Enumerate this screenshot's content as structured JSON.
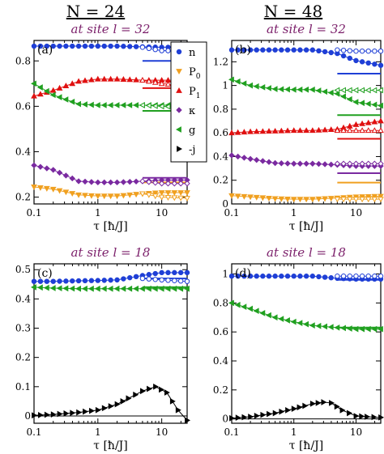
{
  "chart_data": [
    {
      "type": "scatter",
      "panel": "(a)",
      "column_title": "N = 24",
      "subtitle": "at site l = 32",
      "xlabel": "τ [ħ/J]",
      "xscale": "log",
      "xlim": [
        0.1,
        25
      ],
      "ylim": [
        0.17,
        0.89
      ],
      "xticks": [
        "0.1",
        "1",
        "10"
      ],
      "yticks": [
        0.2,
        0.4,
        0.6,
        0.8
      ],
      "ytick_labels": [
        "0.2",
        "0.4",
        "0.6",
        "0.8"
      ],
      "legend": {
        "placement": "top-right",
        "entries": [
          {
            "label": "n",
            "sub": "",
            "marker": "circle",
            "color": "#1f3fd6"
          },
          {
            "label": "P",
            "sub": "0",
            "marker": "tri-down",
            "color": "#f0a020"
          },
          {
            "label": "P",
            "sub": "1",
            "marker": "tri-up",
            "color": "#e01010"
          },
          {
            "label": "κ",
            "sub": "",
            "marker": "diamond",
            "color": "#7a2aa0"
          },
          {
            "label": "g",
            "sub": "",
            "marker": "tri-left",
            "color": "#20a020"
          },
          {
            "label": "-j",
            "sub": "",
            "marker": "tri-right",
            "color": "#000000"
          }
        ]
      },
      "series": [
        {
          "name": "n",
          "color": "#1f3fd6",
          "marker": "circle",
          "x": [
            0.1,
            0.2,
            0.5,
            1,
            2,
            5,
            10,
            25
          ],
          "y": [
            0.865,
            0.865,
            0.865,
            0.865,
            0.865,
            0.862,
            0.86,
            0.86
          ],
          "branch_x": [
            5,
            10,
            25
          ],
          "branch_y": [
            0.86,
            0.845,
            0.845
          ],
          "ref": {
            "x": [
              5,
              25
            ],
            "y": 0.8
          }
        },
        {
          "name": "P0",
          "color": "#f0a020",
          "marker": "tri-down",
          "x": [
            0.1,
            0.2,
            0.5,
            1,
            2,
            5,
            10,
            25
          ],
          "y": [
            0.245,
            0.235,
            0.21,
            0.205,
            0.205,
            0.215,
            0.22,
            0.22
          ],
          "branch_x": [
            5,
            10,
            25
          ],
          "branch_y": [
            0.215,
            0.2,
            0.195
          ],
          "ref": {
            "x": [
              5,
              25
            ],
            "y": 0.265
          }
        },
        {
          "name": "P1",
          "color": "#e01010",
          "marker": "tri-up",
          "x": [
            0.1,
            0.2,
            0.5,
            1,
            2,
            5,
            10,
            25
          ],
          "y": [
            0.645,
            0.67,
            0.71,
            0.72,
            0.72,
            0.715,
            0.715,
            0.715
          ],
          "branch_x": [
            5,
            10,
            25
          ],
          "branch_y": [
            0.715,
            0.7,
            0.69
          ],
          "ref": {
            "x": [
              5,
              25
            ],
            "y": 0.68
          }
        },
        {
          "name": "κ",
          "color": "#7a2aa0",
          "marker": "diamond",
          "x": [
            0.1,
            0.2,
            0.5,
            1,
            2,
            5,
            10,
            25
          ],
          "y": [
            0.34,
            0.32,
            0.27,
            0.265,
            0.265,
            0.27,
            0.275,
            0.275
          ],
          "branch_x": [
            5,
            10,
            25
          ],
          "branch_y": [
            0.27,
            0.26,
            0.26
          ],
          "ref": {
            "x": [
              5,
              25
            ],
            "y": 0.285
          }
        },
        {
          "name": "g",
          "color": "#20a020",
          "marker": "tri-left",
          "x": [
            0.1,
            0.2,
            0.5,
            1,
            2,
            5,
            10,
            25
          ],
          "y": [
            0.7,
            0.65,
            0.61,
            0.605,
            0.605,
            0.605,
            0.605,
            0.605
          ],
          "branch_x": [
            5,
            10,
            25
          ],
          "branch_y": [
            0.605,
            0.6,
            0.595
          ],
          "ref": {
            "x": [
              5,
              25
            ],
            "y": 0.58
          }
        }
      ]
    },
    {
      "type": "scatter",
      "panel": "(b)",
      "column_title": "N = 48",
      "subtitle": "at site l = 32",
      "xlabel": "τ [ħ/J]",
      "xscale": "log",
      "xlim": [
        0.1,
        25
      ],
      "ylim": [
        0,
        1.38
      ],
      "xticks": [
        "0.1",
        "1",
        "10"
      ],
      "yticks": [
        0,
        0.2,
        0.4,
        0.6,
        0.8,
        1,
        1.2
      ],
      "ytick_labels": [
        "0",
        "0.2",
        "0.4",
        "0.6",
        "0.8",
        "1",
        "1.2"
      ],
      "series": [
        {
          "name": "n",
          "color": "#1f3fd6",
          "marker": "circle",
          "x": [
            0.1,
            0.2,
            0.5,
            1,
            2,
            5,
            10,
            25
          ],
          "y": [
            1.3,
            1.3,
            1.3,
            1.3,
            1.3,
            1.27,
            1.21,
            1.17
          ],
          "branch_x": [
            5,
            10,
            25
          ],
          "branch_y": [
            1.3,
            1.29,
            1.29
          ],
          "ref": {
            "x": [
              5,
              25
            ],
            "y": 1.1
          }
        },
        {
          "name": "g",
          "color": "#20a020",
          "marker": "tri-left",
          "x": [
            0.1,
            0.2,
            0.5,
            1,
            2,
            5,
            10,
            25
          ],
          "y": [
            1.05,
            1.0,
            0.97,
            0.965,
            0.965,
            0.93,
            0.86,
            0.83
          ],
          "branch_x": [
            5,
            10,
            25
          ],
          "branch_y": [
            0.96,
            0.96,
            0.96
          ],
          "ref": {
            "x": [
              5,
              25
            ],
            "y": 0.75
          }
        },
        {
          "name": "P1",
          "color": "#e01010",
          "marker": "tri-up",
          "x": [
            0.1,
            0.2,
            0.5,
            1,
            2,
            5,
            10,
            25
          ],
          "y": [
            0.6,
            0.61,
            0.615,
            0.62,
            0.62,
            0.63,
            0.67,
            0.7
          ],
          "branch_x": [
            5,
            10,
            25
          ],
          "branch_y": [
            0.62,
            0.62,
            0.62
          ],
          "ref": {
            "x": [
              5,
              25
            ],
            "y": 0.55
          }
        },
        {
          "name": "κ",
          "color": "#7a2aa0",
          "marker": "diamond",
          "x": [
            0.1,
            0.2,
            0.5,
            1,
            2,
            5,
            10,
            25
          ],
          "y": [
            0.41,
            0.38,
            0.345,
            0.34,
            0.34,
            0.33,
            0.32,
            0.32
          ],
          "branch_x": [
            5,
            10,
            25
          ],
          "branch_y": [
            0.34,
            0.34,
            0.34
          ],
          "ref": {
            "x": [
              5,
              25
            ],
            "y": 0.26
          }
        },
        {
          "name": "P0",
          "color": "#f0a020",
          "marker": "tri-down",
          "x": [
            0.1,
            0.2,
            0.5,
            1,
            2,
            5,
            10,
            25
          ],
          "y": [
            0.07,
            0.06,
            0.045,
            0.04,
            0.04,
            0.05,
            0.06,
            0.065
          ],
          "branch_x": [
            5,
            10,
            25
          ],
          "branch_y": [
            0.04,
            0.04,
            0.04
          ],
          "ref": {
            "x": [
              5,
              25
            ],
            "y": 0.18
          }
        }
      ]
    },
    {
      "type": "scatter",
      "panel": "(c)",
      "subtitle": "at site l = 18",
      "xlabel": "τ [ħ/J]",
      "xscale": "log",
      "xlim": [
        0.1,
        25
      ],
      "ylim": [
        -0.025,
        0.52
      ],
      "xticks": [
        "0.1",
        "1",
        "10"
      ],
      "yticks": [
        0,
        0.1,
        0.2,
        0.3,
        0.4,
        0.5
      ],
      "ytick_labels": [
        "0",
        "0.1",
        "0.2",
        "0.3",
        "0.4",
        "0.5"
      ],
      "series": [
        {
          "name": "n",
          "color": "#1f3fd6",
          "marker": "circle",
          "x": [
            0.1,
            0.2,
            0.5,
            1,
            2,
            5,
            10,
            25
          ],
          "y": [
            0.46,
            0.46,
            0.462,
            0.463,
            0.465,
            0.48,
            0.49,
            0.49
          ],
          "branch_x": [
            5,
            10,
            25
          ],
          "branch_y": [
            0.47,
            0.465,
            0.46
          ],
          "ref": {
            "x": [
              5,
              25
            ],
            "y": 0.47
          }
        },
        {
          "name": "g",
          "color": "#20a020",
          "marker": "tri-left",
          "x": [
            0.1,
            0.2,
            0.5,
            1,
            2,
            5,
            10,
            25
          ],
          "y": [
            0.44,
            0.437,
            0.435,
            0.435,
            0.435,
            0.435,
            0.435,
            0.435
          ],
          "branch_x": [],
          "branch_y": [],
          "ref": {
            "x": [
              5,
              25
            ],
            "y": 0.44
          }
        },
        {
          "name": "-j",
          "color": "#000000",
          "marker": "tri-right",
          "x": [
            0.1,
            0.2,
            0.5,
            1,
            2,
            3,
            5,
            8,
            12,
            18,
            25
          ],
          "y": [
            0.002,
            0.005,
            0.012,
            0.02,
            0.04,
            0.06,
            0.085,
            0.1,
            0.08,
            0.02,
            -0.015
          ],
          "branch_x": [],
          "branch_y": [],
          "ref": {
            "x": [
              0.1,
              25
            ],
            "y": 0
          }
        }
      ]
    },
    {
      "type": "scatter",
      "panel": "(d)",
      "subtitle": "at site l = 18",
      "xlabel": "τ [ħ/J]",
      "xscale": "log",
      "xlim": [
        0.1,
        25
      ],
      "ylim": [
        -0.03,
        1.07
      ],
      "xticks": [
        "0.1",
        "1",
        "10"
      ],
      "yticks": [
        0,
        0.2,
        0.4,
        0.6,
        0.8,
        1
      ],
      "ytick_labels": [
        "0",
        "0.2",
        "0.4",
        "0.6",
        "0.8",
        "1"
      ],
      "series": [
        {
          "name": "n",
          "color": "#1f3fd6",
          "marker": "circle",
          "x": [
            0.1,
            0.2,
            0.5,
            1,
            2,
            5,
            10,
            25
          ],
          "y": [
            0.985,
            0.985,
            0.985,
            0.985,
            0.985,
            0.97,
            0.965,
            0.965
          ],
          "branch_x": [
            5,
            10,
            25
          ],
          "branch_y": [
            0.985,
            0.985,
            0.985
          ],
          "ref": {
            "x": [
              5,
              25
            ],
            "y": 0.96
          }
        },
        {
          "name": "g",
          "color": "#20a020",
          "marker": "tri-left",
          "x": [
            0.1,
            0.2,
            0.5,
            1,
            2,
            5,
            10,
            25
          ],
          "y": [
            0.8,
            0.76,
            0.7,
            0.67,
            0.645,
            0.63,
            0.62,
            0.62
          ],
          "branch_x": [],
          "branch_y": [],
          "ref": {
            "x": [
              5,
              25
            ],
            "y": 0.63
          }
        },
        {
          "name": "-j",
          "color": "#000000",
          "marker": "tri-right",
          "x": [
            0.1,
            0.2,
            0.5,
            1,
            1.5,
            2,
            3,
            4,
            6,
            10,
            15,
            25
          ],
          "y": [
            0.005,
            0.015,
            0.04,
            0.07,
            0.09,
            0.105,
            0.115,
            0.11,
            0.06,
            0.02,
            0.015,
            0.01
          ],
          "branch_x": [],
          "branch_y": [],
          "ref": {
            "x": [
              0.1,
              25
            ],
            "y": 0
          }
        }
      ]
    }
  ]
}
